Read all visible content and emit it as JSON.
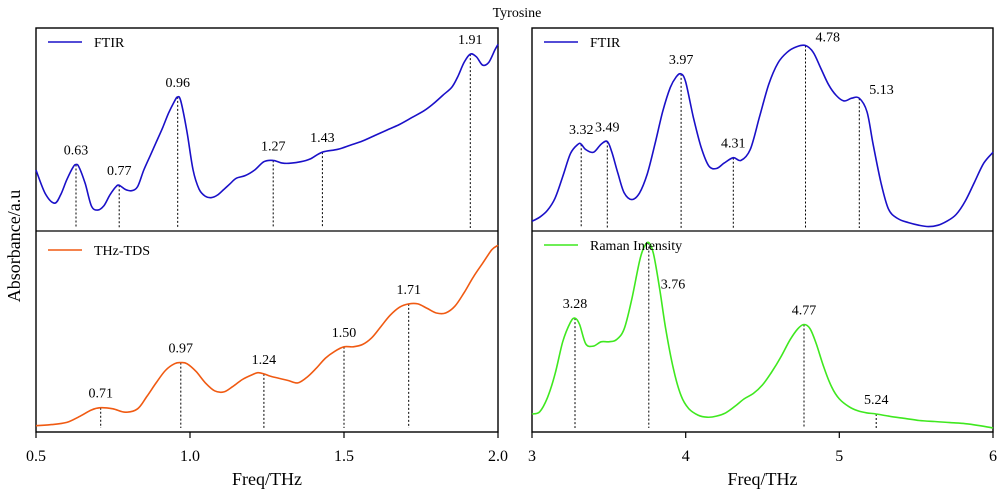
{
  "chart_data": {
    "type": "line",
    "title": "Tyrosine",
    "ylabel": "Absorbance/a.u",
    "panels": [
      {
        "id": "ftir-left",
        "xlim": [
          0.5,
          2.0
        ],
        "series": [
          {
            "name": "FTIR",
            "color": "#1a10c8",
            "x": [
              0.5,
              0.53,
              0.56,
              0.58,
              0.6,
              0.62,
              0.63,
              0.64,
              0.66,
              0.68,
              0.7,
              0.72,
              0.74,
              0.76,
              0.77,
              0.79,
              0.81,
              0.83,
              0.85,
              0.87,
              0.89,
              0.91,
              0.93,
              0.95,
              0.96,
              0.97,
              0.99,
              1.01,
              1.03,
              1.05,
              1.07,
              1.09,
              1.11,
              1.13,
              1.15,
              1.18,
              1.21,
              1.24,
              1.27,
              1.3,
              1.33,
              1.36,
              1.39,
              1.43,
              1.48,
              1.52,
              1.56,
              1.6,
              1.64,
              1.68,
              1.72,
              1.76,
              1.79,
              1.82,
              1.85,
              1.87,
              1.89,
              1.91,
              1.93,
              1.95,
              1.97,
              1.99,
              2.0
            ],
            "y": [
              0.42,
              0.25,
              0.18,
              0.24,
              0.35,
              0.44,
              0.46,
              0.44,
              0.32,
              0.16,
              0.13,
              0.16,
              0.24,
              0.3,
              0.31,
              0.28,
              0.27,
              0.3,
              0.42,
              0.52,
              0.62,
              0.72,
              0.83,
              0.92,
              0.95,
              0.92,
              0.7,
              0.42,
              0.28,
              0.23,
              0.22,
              0.24,
              0.28,
              0.32,
              0.36,
              0.38,
              0.42,
              0.48,
              0.49,
              0.47,
              0.47,
              0.48,
              0.5,
              0.55,
              0.57,
              0.6,
              0.63,
              0.67,
              0.71,
              0.75,
              0.8,
              0.85,
              0.9,
              0.96,
              1.02,
              1.1,
              1.2,
              1.26,
              1.24,
              1.18,
              1.2,
              1.29,
              1.33
            ]
          }
        ],
        "peaks": [
          0.63,
          0.77,
          0.96,
          1.27,
          1.43,
          1.91
        ],
        "peak_labels": [
          "0.63",
          "0.77",
          "0.96",
          "1.27",
          "1.43",
          "1.91"
        ]
      },
      {
        "id": "thz-left",
        "xlim": [
          0.5,
          2.0
        ],
        "series": [
          {
            "name": "THz-TDS",
            "color": "#f05a12",
            "x": [
              0.5,
              0.55,
              0.6,
              0.64,
              0.68,
              0.71,
              0.75,
              0.79,
              0.83,
              0.86,
              0.89,
              0.92,
              0.95,
              0.97,
              0.99,
              1.02,
              1.05,
              1.08,
              1.11,
              1.14,
              1.17,
              1.2,
              1.22,
              1.24,
              1.26,
              1.29,
              1.32,
              1.35,
              1.38,
              1.41,
              1.44,
              1.47,
              1.5,
              1.53,
              1.56,
              1.59,
              1.62,
              1.65,
              1.68,
              1.71,
              1.74,
              1.77,
              1.8,
              1.83,
              1.86,
              1.89,
              1.92,
              1.95,
              1.98,
              2.0
            ],
            "y": [
              0.02,
              0.03,
              0.05,
              0.1,
              0.16,
              0.18,
              0.17,
              0.14,
              0.17,
              0.28,
              0.4,
              0.51,
              0.57,
              0.58,
              0.57,
              0.5,
              0.4,
              0.33,
              0.32,
              0.37,
              0.43,
              0.47,
              0.49,
              0.48,
              0.46,
              0.44,
              0.42,
              0.4,
              0.45,
              0.53,
              0.62,
              0.68,
              0.72,
              0.72,
              0.74,
              0.8,
              0.9,
              1.0,
              1.07,
              1.1,
              1.1,
              1.06,
              1.02,
              1.02,
              1.08,
              1.2,
              1.34,
              1.46,
              1.58,
              1.62
            ]
          }
        ],
        "peaks": [
          0.71,
          0.97,
          1.24,
          1.5,
          1.71
        ],
        "peak_labels": [
          "0.71",
          "0.97",
          "1.24",
          "1.50",
          "1.71"
        ]
      },
      {
        "id": "ftir-right",
        "xlim": [
          3,
          6
        ],
        "series": [
          {
            "name": "FTIR",
            "color": "#1a10c8",
            "x": [
              3.0,
              3.05,
              3.1,
              3.15,
              3.2,
              3.25,
              3.3,
              3.32,
              3.35,
              3.4,
              3.45,
              3.49,
              3.52,
              3.56,
              3.6,
              3.65,
              3.7,
              3.75,
              3.8,
              3.85,
              3.9,
              3.94,
              3.97,
              4.0,
              4.05,
              4.1,
              4.15,
              4.2,
              4.25,
              4.31,
              4.36,
              4.42,
              4.48,
              4.54,
              4.6,
              4.66,
              4.72,
              4.78,
              4.83,
              4.88,
              4.93,
              4.98,
              5.03,
              5.08,
              5.13,
              5.18,
              5.22,
              5.27,
              5.32,
              5.38,
              5.45,
              5.52,
              5.58,
              5.64,
              5.7,
              5.76,
              5.82,
              5.88,
              5.94,
              6.0
            ],
            "y": [
              0.05,
              0.08,
              0.13,
              0.22,
              0.38,
              0.55,
              0.62,
              0.62,
              0.58,
              0.56,
              0.62,
              0.64,
              0.56,
              0.4,
              0.26,
              0.21,
              0.26,
              0.4,
              0.62,
              0.86,
              1.04,
              1.12,
              1.14,
              1.08,
              0.82,
              0.6,
              0.46,
              0.44,
              0.48,
              0.52,
              0.5,
              0.58,
              0.82,
              1.06,
              1.22,
              1.3,
              1.34,
              1.35,
              1.3,
              1.18,
              1.06,
              0.98,
              0.94,
              0.96,
              0.96,
              0.86,
              0.62,
              0.34,
              0.14,
              0.07,
              0.04,
              0.02,
              0.01,
              0.02,
              0.05,
              0.1,
              0.2,
              0.34,
              0.48,
              0.56
            ]
          }
        ],
        "peaks": [
          3.32,
          3.49,
          3.97,
          4.31,
          4.78,
          5.13
        ],
        "peak_labels": [
          "3.32",
          "3.49",
          "3.97",
          "4.31",
          "4.78",
          "5.13"
        ]
      },
      {
        "id": "raman-right",
        "xlim": [
          3,
          6
        ],
        "series": [
          {
            "name": "Raman Intensity",
            "color": "#3fe81f",
            "x": [
              3.0,
              3.05,
              3.1,
              3.15,
              3.2,
              3.25,
              3.28,
              3.31,
              3.35,
              3.4,
              3.45,
              3.5,
              3.55,
              3.6,
              3.65,
              3.7,
              3.73,
              3.76,
              3.79,
              3.83,
              3.87,
              3.92,
              3.97,
              4.02,
              4.08,
              4.14,
              4.2,
              4.26,
              4.32,
              4.38,
              4.44,
              4.5,
              4.56,
              4.62,
              4.68,
              4.73,
              4.77,
              4.81,
              4.85,
              4.9,
              4.95,
              5.0,
              5.06,
              5.12,
              5.18,
              5.24,
              5.32,
              5.42,
              5.52,
              5.62,
              5.72,
              5.82,
              5.92,
              6.0
            ],
            "y": [
              0.13,
              0.15,
              0.28,
              0.5,
              0.8,
              0.98,
              1.02,
              0.96,
              0.78,
              0.76,
              0.8,
              0.8,
              0.82,
              0.92,
              1.2,
              1.55,
              1.68,
              1.72,
              1.62,
              1.3,
              0.92,
              0.55,
              0.3,
              0.18,
              0.12,
              0.1,
              0.11,
              0.14,
              0.2,
              0.27,
              0.32,
              0.4,
              0.52,
              0.66,
              0.82,
              0.92,
              0.96,
              0.92,
              0.78,
              0.56,
              0.38,
              0.27,
              0.2,
              0.16,
              0.14,
              0.13,
              0.11,
              0.09,
              0.07,
              0.06,
              0.05,
              0.04,
              0.02,
              0.0
            ]
          }
        ],
        "peaks": [
          3.28,
          3.76,
          4.77,
          5.24
        ],
        "peak_labels": [
          "3.28",
          "3.76",
          "4.77",
          "5.24"
        ]
      }
    ],
    "bottom_axes": [
      {
        "xlabel": "Freq/THz",
        "ticks": [
          0.5,
          1.0,
          1.5,
          2.0
        ],
        "tick_labels": [
          "0.5",
          "1.0",
          "1.5",
          "2.0"
        ]
      },
      {
        "xlabel": "Freq/THz",
        "ticks": [
          3,
          4,
          5,
          6
        ],
        "tick_labels": [
          "3",
          "4",
          "5",
          "6"
        ]
      }
    ]
  }
}
